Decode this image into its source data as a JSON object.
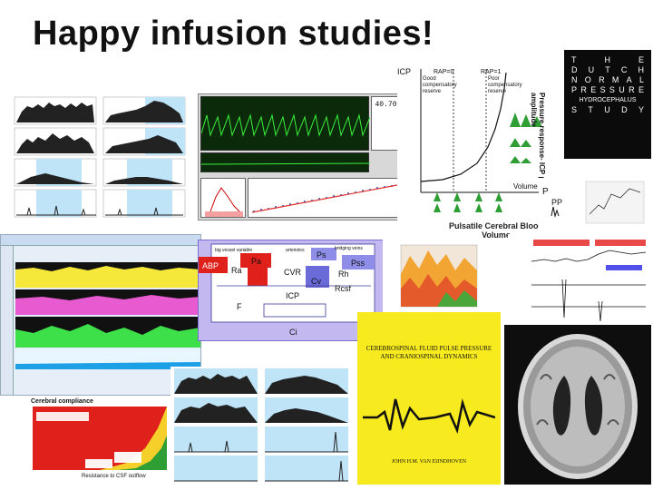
{
  "slide": {
    "title": "Happy infusion studies!"
  },
  "compliance_chart": {
    "y_label": "ICP",
    "col_left_label": "RAP=0",
    "col_right_label": "RAP=1",
    "region_good": "Good compensatory reserve",
    "region_poor": "Poor compensatory reserve",
    "x_label": "Volume",
    "bottom_label": "Pulsatile Cerebral Blood Volume",
    "response_label": "Pressure response- ICP pulse amplitude"
  },
  "dutch_study": {
    "rows": [
      [
        "T",
        "H",
        "E"
      ],
      [
        "D",
        "U",
        "T",
        "C",
        "H"
      ],
      [
        "N",
        "O",
        "R",
        "M",
        "A",
        "L"
      ],
      [
        "P",
        "R",
        "E",
        "S",
        "S",
        "U",
        "R",
        "E"
      ],
      [
        "HYDROCEPHALUS"
      ],
      [
        "S",
        "T",
        "U",
        "D",
        "Y"
      ]
    ]
  },
  "monitor_panel": {
    "value_main": "40.70"
  },
  "pp_labels": {
    "p": "P",
    "pp": "PP"
  },
  "circuit": {
    "abp": "ABP",
    "ra": "Ra",
    "pa": "Pa",
    "cvr": "CVR",
    "ps": "Ps",
    "pss": "Pss",
    "rh": "Rh",
    "cv": "Cv",
    "rcsf": "Rcsf",
    "icp": "ICP",
    "ci": "Ci",
    "f": "F",
    "top_left_note": "big vessel variable",
    "top_mid_note": "arterioles",
    "top_right_note": "bridging veins"
  },
  "book": {
    "title": "CEREBROSPINAL FLUID PULSE PRESSURE AND CRANIOSPINAL DYNAMICS",
    "authors": "JOHN H.M. VAN EIJNDHOVEN"
  },
  "compliance_curve": {
    "title": "Cerebral compliance",
    "x_label": "Resistance to CSF outflow"
  },
  "colors": {
    "green": "#2f9e35",
    "yellow": "#f5e83a",
    "magenta": "#e85ad0",
    "red": "#e0201a",
    "blue_band": "#9fd3f2",
    "dark": "#1a1a1a"
  }
}
